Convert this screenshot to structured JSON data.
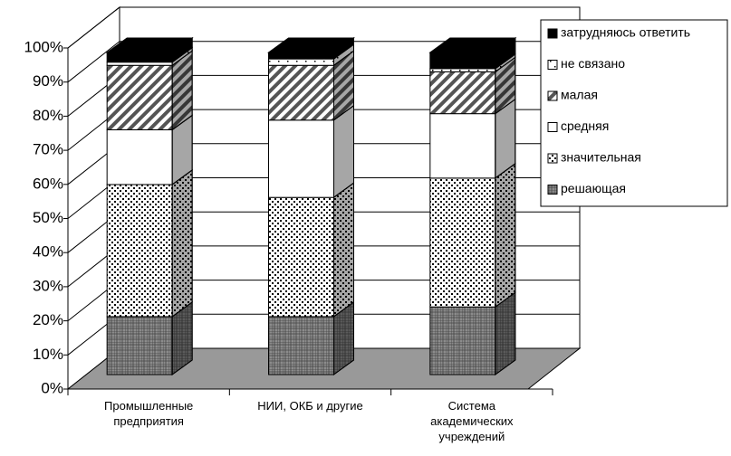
{
  "chart_data": {
    "type": "bar",
    "stacked": true,
    "categories": [
      "Промышленные предприятия",
      "НИИ, ОКБ и другие",
      "Система академических учреждений"
    ],
    "series": [
      {
        "name": "решающая",
        "color": "#8c8c8c",
        "values": [
          18,
          18,
          21
        ]
      },
      {
        "name": "значительная",
        "color": "#ffffff",
        "values": [
          41,
          37,
          40
        ]
      },
      {
        "name": "средняя",
        "color": "#ffffff",
        "values": [
          17,
          24,
          20
        ]
      },
      {
        "name": "малая",
        "color": "#ffffff",
        "values": [
          20,
          17,
          13
        ]
      },
      {
        "name": "не связано",
        "color": "#ffffff",
        "values": [
          1,
          2,
          1
        ]
      },
      {
        "name": "затрудняюсь ответить",
        "color": "#000000",
        "values": [
          3,
          2,
          5
        ]
      }
    ],
    "ylim": [
      0,
      100
    ],
    "yticks": [
      {
        "value": 0,
        "label": "0%"
      },
      {
        "value": 10,
        "label": "10%"
      },
      {
        "value": 20,
        "label": "20%"
      },
      {
        "value": 30,
        "label": "30%"
      },
      {
        "value": 40,
        "label": "40%"
      },
      {
        "value": 50,
        "label": "50%"
      },
      {
        "value": 60,
        "label": "60%"
      },
      {
        "value": 70,
        "label": "70%"
      },
      {
        "value": 80,
        "label": "80%"
      },
      {
        "value": 90,
        "label": "90%"
      },
      {
        "value": 100,
        "label": "100%"
      }
    ],
    "grid": true,
    "legend": "right"
  }
}
